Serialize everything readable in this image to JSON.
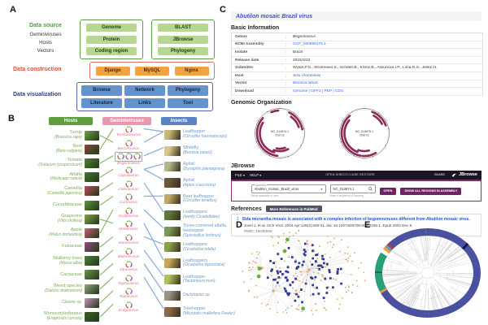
{
  "panels": {
    "a": "A",
    "b": "B",
    "c": "C",
    "d": "D",
    "e": "E"
  },
  "panelA": {
    "data_source_label": "Data source",
    "side_items": [
      "Geminiviruses",
      "Hosts",
      "Vectors"
    ],
    "construction_label": "Data construction",
    "visualization_label": "Data visualization",
    "source_box1": [
      {
        "label": "Genome"
      },
      {
        "label": "Protein"
      },
      {
        "label": "Coding region"
      }
    ],
    "source_box2": [
      {
        "label": "BLAST"
      },
      {
        "label": "JBrowse"
      },
      {
        "label": "Phylogeny"
      }
    ],
    "construction": [
      {
        "label": "Django"
      },
      {
        "label": "MySQL"
      },
      {
        "label": "Nginx"
      }
    ],
    "visualization": [
      {
        "label": "Browse"
      },
      {
        "label": "Network"
      },
      {
        "label": "Phylogeny"
      },
      {
        "label": "Literature"
      },
      {
        "label": "Links"
      },
      {
        "label": "Tool"
      }
    ],
    "colors": {
      "green_btn": "#b5d78f",
      "orange_btn": "#f2a341",
      "blue_btn": "#6593ce",
      "green_border": "#5a9e43",
      "red_border": "#e06e6e",
      "blue_border": "#5863a8"
    }
  },
  "panelB": {
    "headers": [
      {
        "label": "Hosts"
      },
      {
        "label": "Geminiviruses"
      },
      {
        "label": "Insects"
      }
    ],
    "hosts": [
      {
        "name": "Turnip",
        "latin": "(Brassica rapa)",
        "photo": "#6a9a3f"
      },
      {
        "name": "Beet",
        "latin": "(Beta vulgaris)",
        "photo": "#7a4a3a"
      },
      {
        "name": "Tomato",
        "latin": "(Solanum lycopersicum)",
        "photo": "#4e7a33"
      },
      {
        "name": "Alfalfa",
        "latin": "(Medicago sativa)",
        "photo": "#3f6f2f"
      },
      {
        "name": "Camellia",
        "latin": "(Camellia japonica)",
        "photo": "#b04a5a"
      },
      {
        "name": "Cucurbitaceae",
        "latin": "",
        "photo": "#5a8a3a"
      },
      {
        "name": "Grapevine",
        "latin": "(Vitis vinifera)",
        "photo": "#7a9a4a"
      },
      {
        "name": "Apple",
        "latin": "(Malus domestica)",
        "photo": "#c05a6a"
      },
      {
        "name": "Fabaceae",
        "latin": "",
        "photo": "#8a4a7a"
      },
      {
        "name": "Mulberry trees",
        "latin": "(Morus alba)",
        "photo": "#4a7a3a"
      },
      {
        "name": "Cactaceae",
        "latin": "",
        "photo": "#6a8a4a"
      },
      {
        "name": "Weed species",
        "latin": "(Datura stramonium)",
        "photo": "#8a9a7a"
      },
      {
        "name": "",
        "latin": "Cleome sp.",
        "photo": "#c08ab0"
      },
      {
        "name": "Monocotyledonous",
        "latin": "(Eragrostis curvula)",
        "photo": "#3a5a2a"
      }
    ],
    "viruses": [
      {
        "name": "Turncurtovirus",
        "multi": false
      },
      {
        "name": "Becurtovirus",
        "multi": false
      },
      {
        "name": "Begomovirus",
        "multi": true
      },
      {
        "name": "Capulavirus",
        "multi": false
      },
      {
        "name": "Citlodavirus",
        "multi": false
      },
      {
        "name": "Curtovirus",
        "multi": false
      },
      {
        "name": "Grablovirus",
        "multi": false
      },
      {
        "name": "Maldovirus",
        "multi": false
      },
      {
        "name": "Mastrevirus",
        "multi": false
      },
      {
        "name": "Mulcrilevirus",
        "multi": false
      },
      {
        "name": "Opunvirus",
        "multi": false
      },
      {
        "name": "Topocuvirus",
        "multi": false
      },
      {
        "name": "Topilevirus",
        "multi": false
      },
      {
        "name": "Eragrovirus",
        "multi": false
      }
    ],
    "insects": [
      {
        "name": "Leafhopper",
        "latin": "(Circulifer haematoceps)",
        "photo": "#c8b878"
      },
      {
        "name": "Whitefly",
        "latin": "(Bemisia tabaci)",
        "photo": "#d8c890"
      },
      {
        "name": "Aphid",
        "latin": "(Dysaphis plantaginea)",
        "photo": "#b0b890"
      },
      {
        "name": "Aphid",
        "latin": "(Aphis craccivora)",
        "photo": "#6a5a3a"
      },
      {
        "name": "Beet leafhopper",
        "latin": "(Circulifer tenellus)",
        "photo": "#c0a868"
      },
      {
        "name": "Leafhoppers",
        "latin": "(family Cicadellidae)",
        "photo": "#5a7a3a"
      },
      {
        "name": "Three-cornered alfalfa treehopper",
        "latin": "(Spissistilus festinus)",
        "photo": "#7a9a5a"
      },
      {
        "name": "Leafhoppers",
        "latin": "(Cicadulina mbila)",
        "photo": "#8aa04a"
      },
      {
        "name": "Leafhoppers",
        "latin": "(Cicadulina bipunctata)",
        "photo": "#c8a858"
      },
      {
        "name": "Leafhopper",
        "latin": "(Tautoneura mori)",
        "photo": "#b0c060"
      },
      {
        "name": "",
        "latin": "Dactylopius sp.",
        "photo": "#9a9488"
      },
      {
        "name": "Treehopper",
        "latin": "(Micrutalis malleifera Fowler)",
        "photo": "#8a6a4a"
      }
    ],
    "host_virus_links": [
      [
        0,
        1
      ],
      [
        1,
        0
      ],
      [
        2,
        2
      ],
      [
        3,
        3
      ],
      [
        4,
        4
      ],
      [
        5,
        5
      ],
      [
        6,
        7
      ],
      [
        7,
        6
      ],
      [
        8,
        8
      ],
      [
        9,
        9
      ],
      [
        10,
        10
      ],
      [
        11,
        11
      ],
      [
        12,
        12
      ],
      [
        13,
        13
      ]
    ],
    "virus_insect_links": [
      [
        0,
        0
      ],
      [
        1,
        0
      ],
      [
        2,
        1
      ],
      [
        3,
        2
      ],
      [
        3,
        3
      ],
      [
        4,
        5
      ],
      [
        5,
        4
      ],
      [
        6,
        6
      ],
      [
        7,
        8
      ],
      [
        8,
        7
      ],
      [
        9,
        9
      ],
      [
        10,
        10
      ],
      [
        11,
        11
      ]
    ],
    "colors": {
      "host_line": "#8cb86e",
      "insect_line": "#89a8d8"
    }
  },
  "panelC": {
    "title": "Abutilon mosaic Brazil virus",
    "section_basic": "Basic Information",
    "section_genomic": "Genomic Organization",
    "section_jbrowse": "JBrowse",
    "section_references": "References",
    "info_rows": [
      {
        "label": "Genus",
        "value": "Begomovirus",
        "style": "italic"
      },
      {
        "label": "NCBI Assembly",
        "value": "GCF_000899175.1",
        "style": "link"
      },
      {
        "label": "Isolate",
        "value": "Brazil",
        "style": ""
      },
      {
        "label": "Release date",
        "value": "2015/3/22",
        "style": ""
      },
      {
        "label": "Submitter",
        "value": "Wyant,P.S., Strohmeier,S., Schafer,B., Krenz,B., Assuncao,I.P., Lima,G.S., Jeske,H.",
        "style": ""
      },
      {
        "label": "Host",
        "value": "Sida rhombifolia",
        "style": "italiclink"
      },
      {
        "label": "Vector",
        "value": "Bemisia tabaci",
        "style": "italiclink"
      },
      {
        "label": "Download",
        "value": "Genome | GFF3 | PEP | CDS",
        "style": "link"
      }
    ],
    "genome_maps": [
      {
        "name": "NC_014974.1",
        "size": "2632 bp"
      },
      {
        "name": "NC_014975.1",
        "size": "2665 bp"
      }
    ],
    "jbrowse": {
      "menu_file": "FILE ▾",
      "menu_help": "HELP ▾",
      "center_text": "OPEN DIRECTLY/USE RESTORE",
      "share": "SHARE",
      "logo": "JBrowse",
      "assembly_label": "Assembly",
      "assembly_value": "Abutilon_mosaic_Brazil_virus",
      "assembly_help": "Select assembly to view",
      "loc_value": "NC_014974.1",
      "loc_help": "Enter a sequence or locstring",
      "open_btn": "OPEN",
      "show_all_btn": "SHOW ALL REGIONS IN ASSEMBLY"
    },
    "references": {
      "badge": "More References in PubMed",
      "items": [
        {
          "num": "1",
          "title": "Sida micrantha mosaic is associated with a complex infection of begomoviruses different from Abutilon mosaic virus.",
          "citation": "Jovel J, et al. Arch Virol. 2004 Apr;149(4):829-41. doi: 10.1007/s00705-003-0235-1. Epub 2003 Dec 8.",
          "pmid": "PMID: 15045569"
        }
      ]
    },
    "colors": {
      "accent": "#8a2a5e",
      "map_arc": "#8e2a56",
      "link": "#3a6bd6"
    }
  },
  "panelD": {
    "network": {
      "seed": 7,
      "orange": 150,
      "blue": 88,
      "red": 18,
      "green": 5,
      "colors": {
        "orange": "#dfa96a",
        "blue": "#333e8f",
        "red": "#cc4f3d",
        "green": "#6fae3e",
        "edge": "#dadada"
      }
    }
  },
  "panelE": {
    "ring_base": "#4a52a0",
    "ring_segments": [
      {
        "from": 48,
        "to": 51,
        "color": "#16164a"
      },
      {
        "from": 243,
        "to": 246,
        "color": "#e8a23c"
      },
      {
        "from": 246,
        "to": 270,
        "color": "#2aa07a"
      },
      {
        "from": 270,
        "to": 272,
        "color": "#136b50"
      },
      {
        "from": 272,
        "to": 297,
        "color": "#2aa07a"
      },
      {
        "from": 297,
        "to": 302,
        "color": "#ffffff"
      },
      {
        "from": 302,
        "to": 306,
        "color": "#e8a23c"
      },
      {
        "from": 306,
        "to": 309,
        "color": "#5aa0d8"
      },
      {
        "from": 309,
        "to": 312,
        "color": "#c0392b"
      }
    ],
    "tree_color": "#cfcfcf"
  }
}
